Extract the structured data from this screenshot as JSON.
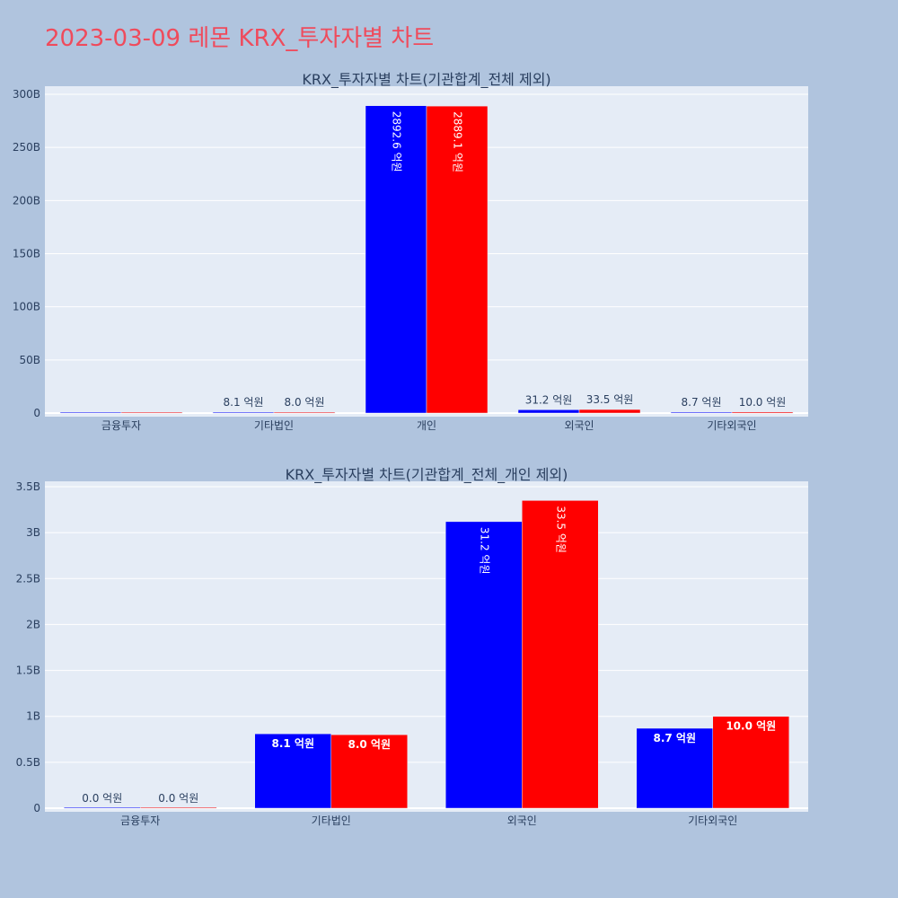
{
  "title": "2023-03-09 레몬 KRX_투자자별 차트",
  "colors": {
    "background": "#b0c4de",
    "plot_bg": "#e5ecf6",
    "title": "#ef4b5c",
    "series_blue": "#0000ff",
    "series_red": "#ff0000"
  },
  "chart_data": [
    {
      "type": "bar",
      "title": "KRX_투자자별 차트(기관합계_전체 제외)",
      "categories": [
        "금융투자",
        "기타법인",
        "개인",
        "외국인",
        "기타외국인"
      ],
      "ylim": [
        0,
        300000000000
      ],
      "yticks": [
        0,
        50000000000,
        100000000000,
        150000000000,
        200000000000,
        250000000000,
        300000000000
      ],
      "ytick_labels": [
        "0",
        "50B",
        "100B",
        "150B",
        "200B",
        "250B",
        "300B"
      ],
      "grid": true,
      "series": [
        {
          "color": "#0000ff",
          "values": [
            0,
            810000000,
            289260000000,
            3120000000,
            870000000
          ],
          "labels": [
            "",
            "8.1 억원",
            "2892.6 억원",
            "31.2 억원",
            "8.7 억원"
          ]
        },
        {
          "color": "#ff0000",
          "values": [
            0,
            800000000,
            288910000000,
            3350000000,
            1000000000
          ],
          "labels": [
            "",
            "8.0 억원",
            "2889.1 억원",
            "33.5 억원",
            "10.0 억원"
          ]
        }
      ]
    },
    {
      "type": "bar",
      "title": "KRX_투자자별 차트(기관합계_전체_개인 제외)",
      "categories": [
        "금융투자",
        "기타법인",
        "외국인",
        "기타외국인"
      ],
      "ylim": [
        0,
        3500000000
      ],
      "yticks": [
        0,
        500000000,
        1000000000,
        1500000000,
        2000000000,
        2500000000,
        3000000000,
        3500000000
      ],
      "ytick_labels": [
        "0",
        "0.5B",
        "1B",
        "1.5B",
        "2B",
        "2.5B",
        "3B",
        "3.5B"
      ],
      "grid": true,
      "series": [
        {
          "color": "#0000ff",
          "values": [
            0,
            810000000,
            3120000000,
            870000000
          ],
          "labels": [
            "0.0 억원",
            "8.1 억원",
            "31.2 억원",
            "8.7 억원"
          ]
        },
        {
          "color": "#ff0000",
          "values": [
            0,
            800000000,
            3350000000,
            1000000000
          ],
          "labels": [
            "0.0 억원",
            "8.0 억원",
            "33.5 억원",
            "10.0 억원"
          ]
        }
      ]
    }
  ]
}
